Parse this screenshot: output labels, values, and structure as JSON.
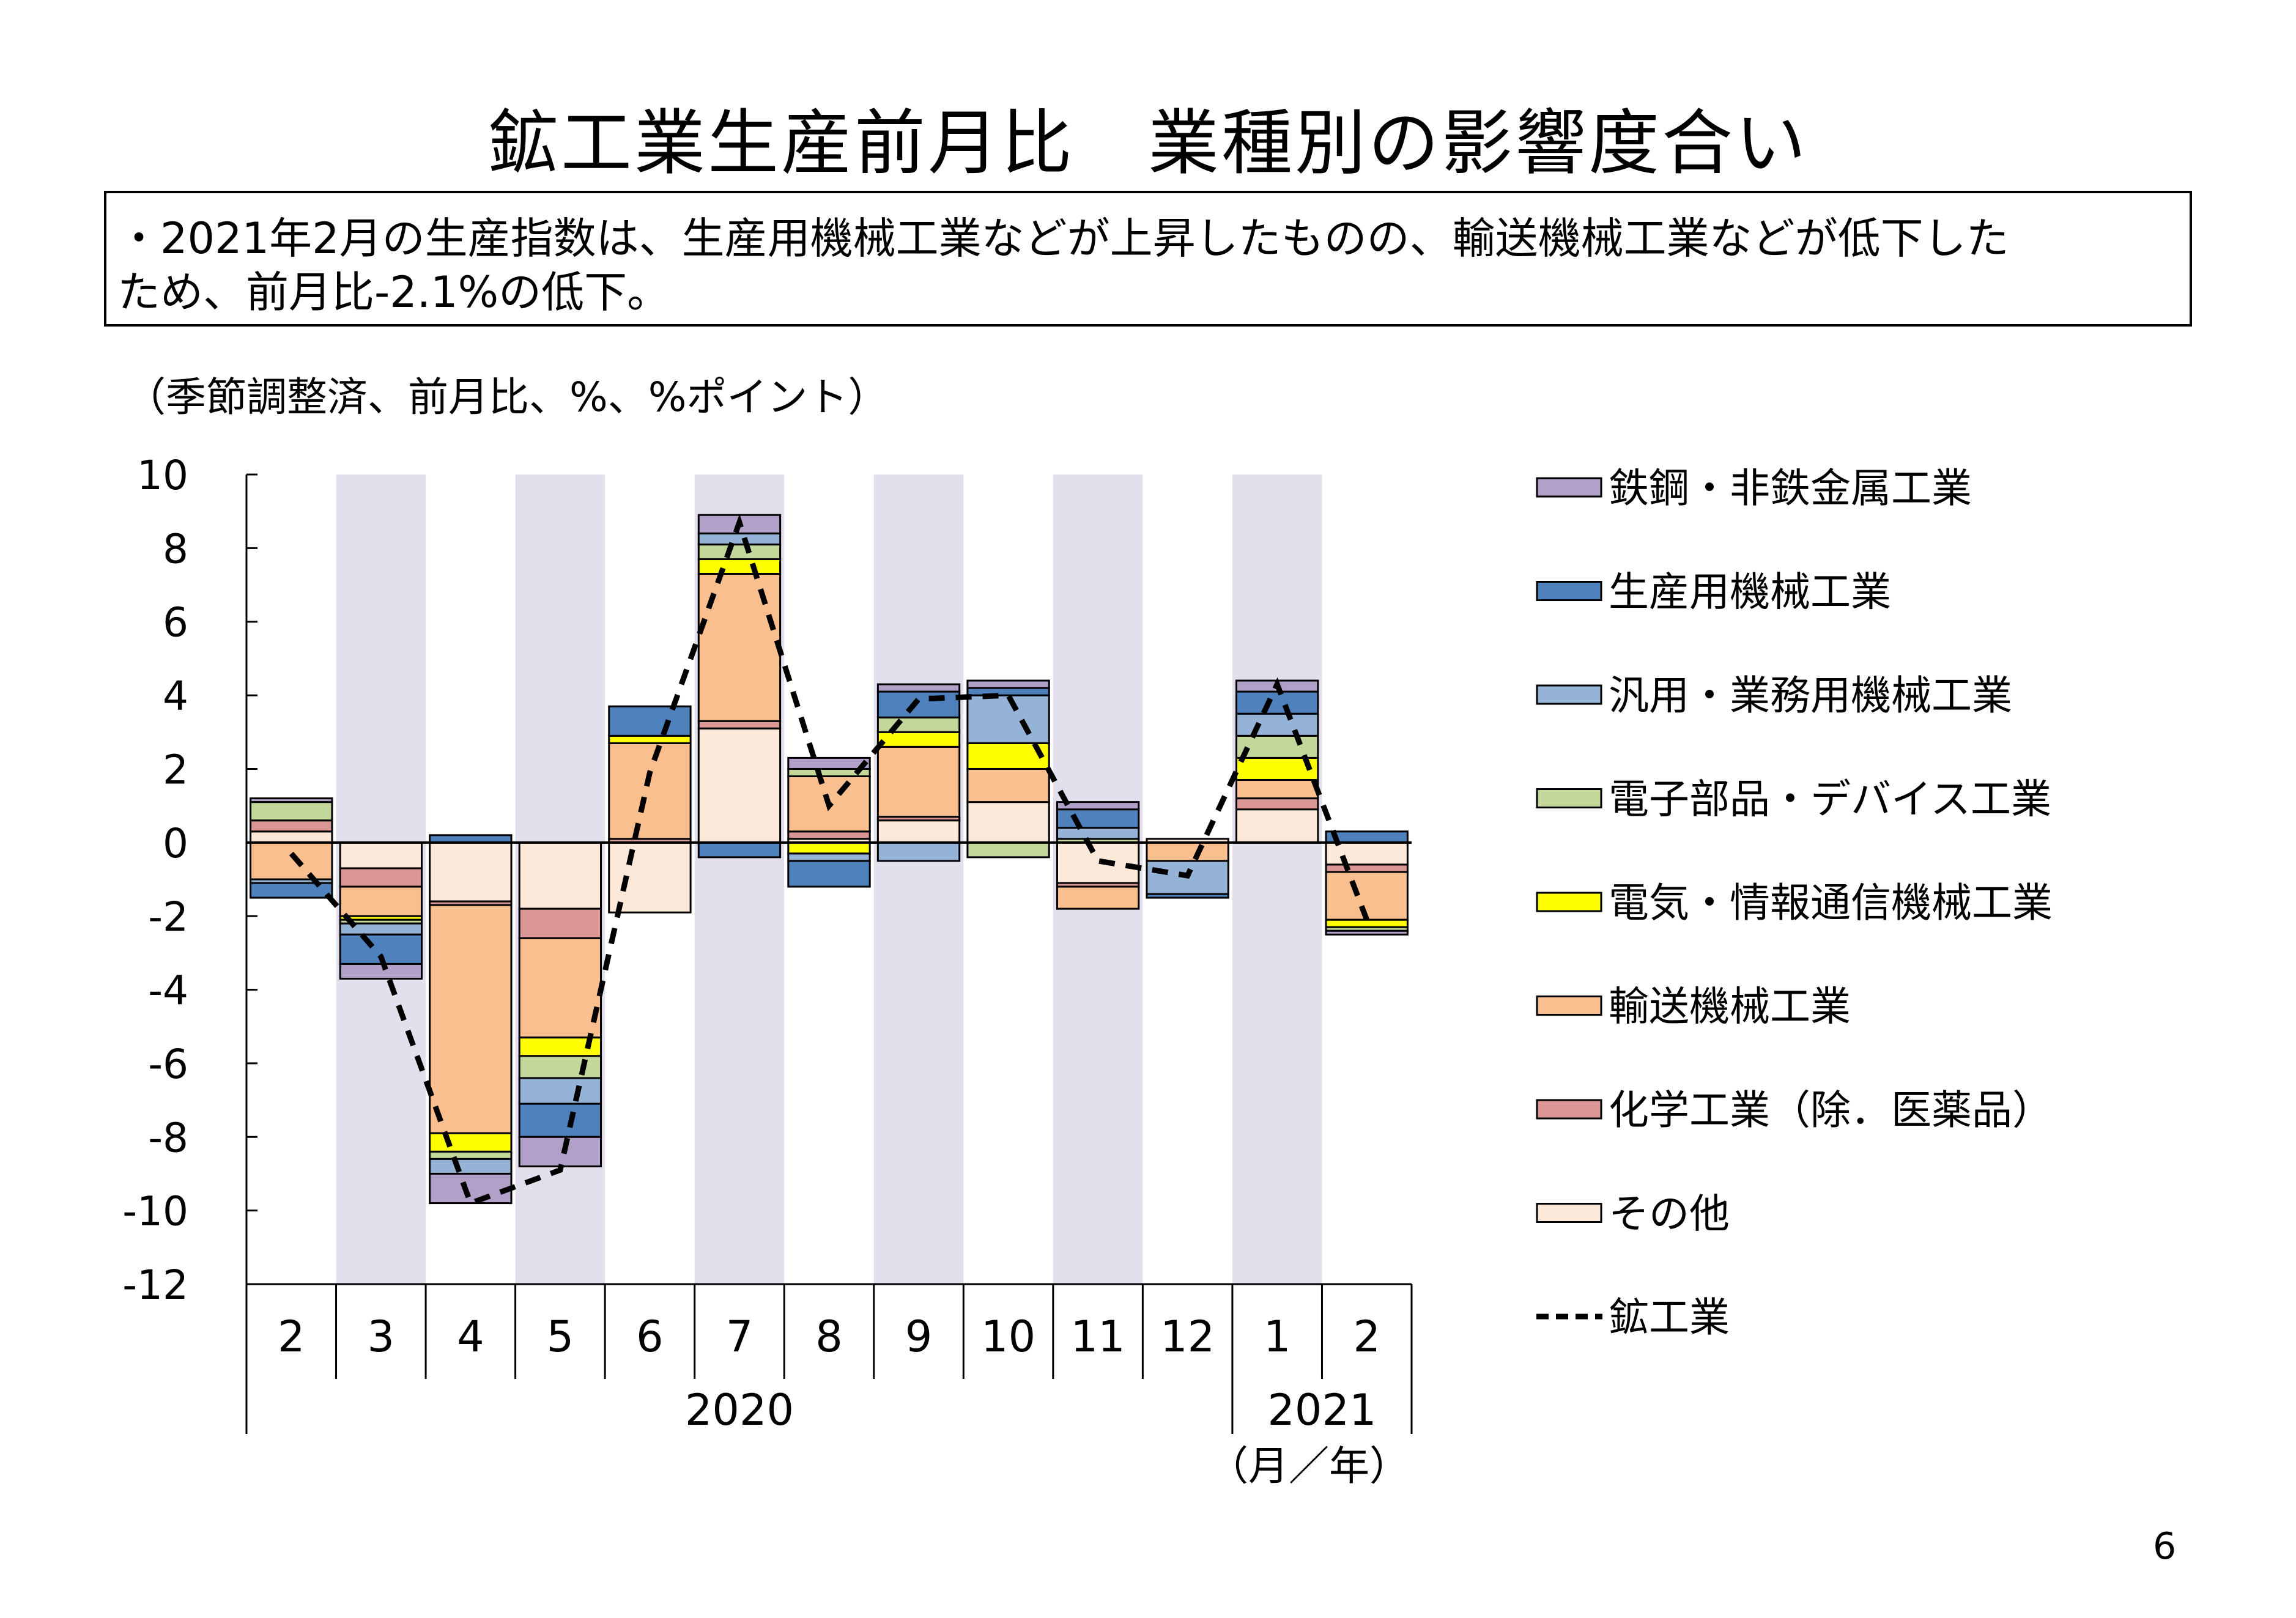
{
  "title": "鉱工業生産前月比　業種別の影響度合い",
  "summary": [
    "・2021年2月の生産指数は、生産用機械工業などが上昇したものの、輸送機械工業などが低下した",
    "ため、前月比-2.1%の低下。"
  ],
  "page_number": "6",
  "chart_data": {
    "type": "bar",
    "stacked": true,
    "unit_note": "（季節調整済、前月比、%、%ポイント）",
    "x_unit_label": "（月／年）",
    "categories": [
      "2",
      "3",
      "4",
      "5",
      "6",
      "7",
      "8",
      "9",
      "10",
      "11",
      "12",
      "1",
      "2"
    ],
    "year_groups": [
      {
        "label": "2020",
        "start": 0,
        "end": 10
      },
      {
        "label": "2021",
        "start": 11,
        "end": 12
      }
    ],
    "shaded_categories": [
      1,
      3,
      5,
      7,
      9,
      11
    ],
    "yticks": [
      10,
      8,
      6,
      4,
      2,
      0,
      -2,
      -4,
      -6,
      -8,
      -10,
      -12
    ],
    "ylim": [
      -12,
      10
    ],
    "grid": false,
    "legend_position": "right",
    "series": [
      {
        "name": "その他",
        "color": "#FDE9D9",
        "values": [
          0.3,
          -0.7,
          -1.6,
          -1.8,
          -1.9,
          3.1,
          0.1,
          0.6,
          1.1,
          -1.1,
          0.1,
          0.9,
          -0.6
        ]
      },
      {
        "name": "化学工業（除．医薬品）",
        "color": "#DA9694",
        "values": [
          0.3,
          -0.5,
          -0.1,
          -0.8,
          0.1,
          0.2,
          0.2,
          0.1,
          0.0,
          -0.1,
          0.0,
          0.3,
          -0.2
        ]
      },
      {
        "name": "輸送機械工業",
        "color": "#FABF8F",
        "values": [
          -1.0,
          -0.8,
          -6.2,
          -2.7,
          2.6,
          4.0,
          1.5,
          1.9,
          0.9,
          -0.6,
          -0.5,
          0.5,
          -1.3
        ]
      },
      {
        "name": "電気・情報通信機械工業",
        "color": "#FFFF00",
        "values": [
          0.0,
          -0.1,
          -0.5,
          -0.5,
          0.2,
          0.4,
          -0.3,
          0.4,
          0.7,
          0.0,
          0.0,
          0.6,
          -0.2
        ]
      },
      {
        "name": "電子部品・デバイス工業",
        "color": "#C4D79B",
        "values": [
          0.5,
          -0.1,
          -0.2,
          -0.6,
          0.0,
          0.4,
          0.2,
          0.4,
          -0.4,
          0.1,
          0.0,
          0.6,
          -0.1
        ]
      },
      {
        "name": "汎用・業務用機械工業",
        "color": "#95B3D7",
        "values": [
          -0.1,
          -0.3,
          -0.4,
          -0.7,
          0.0,
          0.3,
          -0.2,
          -0.5,
          1.3,
          0.3,
          -0.9,
          0.6,
          0.0
        ]
      },
      {
        "name": "生産用機械工業",
        "color": "#4F81BD",
        "values": [
          -0.4,
          -0.8,
          0.2,
          -0.9,
          0.8,
          -0.4,
          -0.7,
          0.7,
          0.2,
          0.5,
          -0.1,
          0.6,
          0.3
        ]
      },
      {
        "name": "鉄鋼・非鉄金属工業",
        "color": "#B1A0C7",
        "values": [
          0.1,
          -0.4,
          -0.8,
          -0.8,
          0.0,
          0.5,
          0.3,
          0.2,
          0.2,
          0.2,
          0.0,
          0.3,
          -0.1
        ]
      }
    ],
    "legend_order": [
      "鉄鋼・非鉄金属工業",
      "生産用機械工業",
      "汎用・業務用機械工業",
      "電子部品・デバイス工業",
      "電気・情報通信機械工業",
      "輸送機械工業",
      "化学工業（除．医薬品）",
      "その他",
      "鉱工業"
    ],
    "line": {
      "name": "鉱工業",
      "color": "#000000",
      "dashed": true,
      "values": [
        -0.3,
        -3.1,
        -9.8,
        -8.9,
        1.9,
        8.7,
        1.0,
        3.9,
        4.0,
        -0.5,
        -0.9,
        4.3,
        -2.1
      ]
    }
  }
}
